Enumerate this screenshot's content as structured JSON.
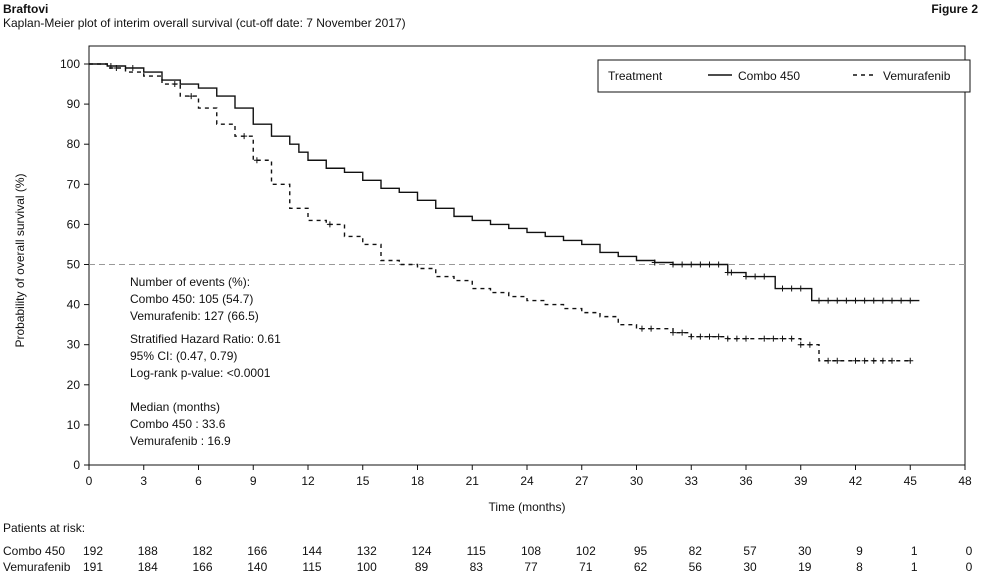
{
  "header": {
    "brand": "Braftovi",
    "figure_label": "Figure 2",
    "subtitle": "Kaplan-Meier plot of interim overall survival (cut-off date: 7 November 2017)"
  },
  "chart_data": {
    "type": "line",
    "xlabel": "Time (months)",
    "ylabel": "Probability of overall survival (%)",
    "xlim": [
      0,
      48
    ],
    "ylim": [
      0,
      100
    ],
    "xticks": [
      0,
      3,
      6,
      9,
      12,
      15,
      18,
      21,
      24,
      27,
      30,
      33,
      36,
      39,
      42,
      45,
      48
    ],
    "yticks": [
      0,
      10,
      20,
      30,
      40,
      50,
      60,
      70,
      80,
      90,
      100
    ],
    "reference_line_y": 50,
    "legend": {
      "title": "Treatment",
      "placement": "top-right",
      "entries": [
        {
          "name": "Combo 450",
          "style": "solid"
        },
        {
          "name": "Vemurafenib",
          "style": "dashed"
        }
      ]
    },
    "annotations": {
      "events_title": "Number of events (%):",
      "events_combo": "Combo 450: 105 (54.7)",
      "events_vemu": "Vemurafenib: 127  (66.5)",
      "hr": "Stratified Hazard Ratio: 0.61",
      "ci": "95% CI: (0.47, 0.79)",
      "logrank": "Log-rank p-value: <0.0001",
      "median_title": "Median (months)",
      "median_combo": "Combo 450 : 33.6",
      "median_vemu": "Vemurafenib : 16.9"
    },
    "series": [
      {
        "name": "Combo 450",
        "style": "solid",
        "points": [
          [
            0,
            100
          ],
          [
            0.6,
            100
          ],
          [
            1,
            99.5
          ],
          [
            2,
            99
          ],
          [
            3,
            98
          ],
          [
            4,
            96
          ],
          [
            5,
            95
          ],
          [
            6,
            94
          ],
          [
            7,
            92
          ],
          [
            8,
            89
          ],
          [
            9,
            85
          ],
          [
            10,
            82
          ],
          [
            11,
            80
          ],
          [
            11.5,
            78
          ],
          [
            12,
            76
          ],
          [
            13,
            74
          ],
          [
            14,
            73
          ],
          [
            15,
            71
          ],
          [
            16,
            69
          ],
          [
            17,
            68
          ],
          [
            18,
            66
          ],
          [
            19,
            64
          ],
          [
            20,
            62
          ],
          [
            21,
            61
          ],
          [
            22,
            60
          ],
          [
            23,
            59
          ],
          [
            24,
            58
          ],
          [
            25,
            57
          ],
          [
            26,
            56
          ],
          [
            27,
            55
          ],
          [
            28,
            53
          ],
          [
            29,
            52
          ],
          [
            30,
            51
          ],
          [
            31,
            50.5
          ],
          [
            32,
            50
          ],
          [
            33,
            50
          ],
          [
            34,
            50
          ],
          [
            35,
            48
          ],
          [
            36,
            47
          ],
          [
            37,
            47
          ],
          [
            37.6,
            44
          ],
          [
            38,
            44
          ],
          [
            39,
            44
          ],
          [
            39.6,
            41
          ],
          [
            41,
            41
          ],
          [
            45.5,
            41
          ]
        ],
        "censor_x": [
          1.2,
          2.4,
          31,
          32,
          32.5,
          33,
          33.5,
          34,
          34.5,
          35,
          35.2,
          36,
          36.5,
          37,
          38,
          38.5,
          39,
          40,
          40.5,
          41,
          41.5,
          42,
          42.5,
          43,
          43.5,
          44,
          44.5,
          45
        ]
      },
      {
        "name": "Vemurafenib",
        "style": "dashed",
        "points": [
          [
            0,
            100
          ],
          [
            1,
            99
          ],
          [
            2,
            98
          ],
          [
            3,
            97
          ],
          [
            4,
            95
          ],
          [
            5,
            92
          ],
          [
            6,
            89
          ],
          [
            7,
            85
          ],
          [
            8,
            82
          ],
          [
            9,
            76
          ],
          [
            10,
            70
          ],
          [
            11,
            64
          ],
          [
            12,
            61
          ],
          [
            13,
            60
          ],
          [
            14,
            57
          ],
          [
            15,
            55
          ],
          [
            16,
            51
          ],
          [
            17,
            50
          ],
          [
            18,
            49
          ],
          [
            19,
            47
          ],
          [
            20,
            46
          ],
          [
            21,
            44
          ],
          [
            22,
            43
          ],
          [
            23,
            42
          ],
          [
            24,
            41
          ],
          [
            25,
            40
          ],
          [
            26,
            39
          ],
          [
            27,
            38
          ],
          [
            28,
            37
          ],
          [
            29,
            35
          ],
          [
            30,
            34
          ],
          [
            31,
            34
          ],
          [
            32,
            33
          ],
          [
            33,
            32
          ],
          [
            34,
            32
          ],
          [
            35,
            31.5
          ],
          [
            36,
            31.5
          ],
          [
            37,
            31.5
          ],
          [
            38,
            31.5
          ],
          [
            39,
            30
          ],
          [
            40,
            26
          ],
          [
            45,
            26
          ]
        ],
        "censor_x": [
          1.5,
          4.7,
          5.6,
          8.5,
          9.2,
          13.2,
          30.3,
          30.8,
          32,
          32.5,
          33,
          33.5,
          34,
          34.5,
          35,
          35.5,
          36,
          37,
          37.5,
          38,
          38.5,
          39,
          39.5,
          40.5,
          41,
          42,
          42.5,
          43,
          43.5,
          44,
          45
        ]
      }
    ],
    "risk_table": {
      "title": "Patients at risk:",
      "times": [
        0,
        3,
        6,
        9,
        12,
        15,
        18,
        21,
        24,
        27,
        30,
        33,
        36,
        39,
        42,
        45,
        48
      ],
      "rows": [
        {
          "name": "Combo 450",
          "values": [
            192,
            188,
            182,
            166,
            144,
            132,
            124,
            115,
            108,
            102,
            95,
            82,
            57,
            30,
            9,
            1,
            0
          ]
        },
        {
          "name": "Vemurafenib",
          "values": [
            191,
            184,
            166,
            140,
            115,
            100,
            89,
            83,
            77,
            71,
            62,
            56,
            30,
            19,
            8,
            1,
            0
          ]
        }
      ]
    }
  }
}
